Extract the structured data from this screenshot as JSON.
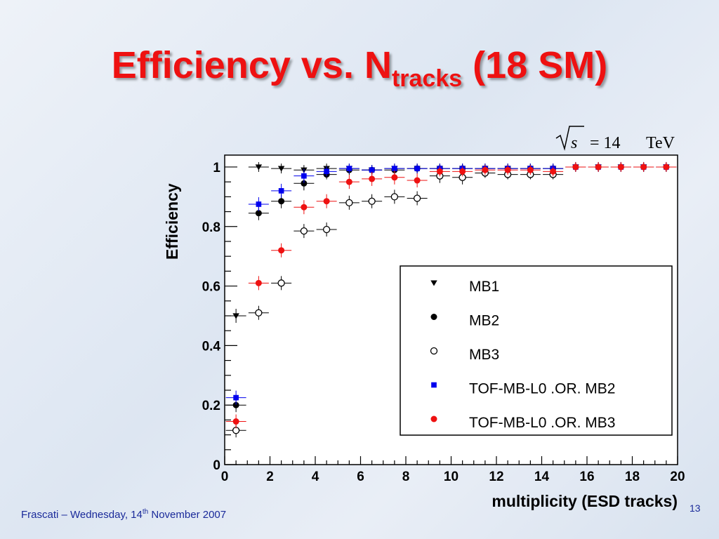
{
  "slide": {
    "title_main": "Efficiency vs. N",
    "title_sub": "tracks",
    "title_tail": " (18 SM)",
    "footer_pre": "Frascati – Wednesday, 14",
    "footer_sup": "th",
    "footer_post": " November 2007",
    "page_number": "13"
  },
  "chart_data": {
    "type": "scatter",
    "annotation": {
      "sqrt": "s",
      "rest": "= 14",
      "unit": "TeV"
    },
    "xlabel": "multiplicity (ESD tracks)",
    "ylabel": "Efficiency",
    "xlim": [
      0,
      20
    ],
    "ylim": [
      0,
      1.04
    ],
    "xticks": [
      0,
      2,
      4,
      6,
      8,
      10,
      12,
      14,
      16,
      18,
      20
    ],
    "yticks": [
      0,
      0.2,
      0.4,
      0.6,
      0.8,
      1
    ],
    "ytick_labels": [
      "0",
      "0.2",
      "0.4",
      "0.6",
      "0.8",
      "1"
    ],
    "legend_position": "lower-right",
    "series": [
      {
        "name": "MB1",
        "marker": "triangle-down",
        "color": "#000000",
        "x": [
          0.5,
          1.5,
          2.5,
          3.5,
          4.5,
          5.5,
          6.5,
          7.5,
          8.5,
          9.5,
          10.5,
          11.5,
          12.5,
          13.5,
          14.5,
          15.5,
          16.5,
          17.5,
          18.5,
          19.5
        ],
        "y": [
          0.5,
          1.0,
          0.995,
          0.99,
          0.995,
          0.995,
          0.99,
          0.995,
          0.995,
          0.995,
          0.995,
          0.995,
          0.995,
          0.995,
          0.995,
          1.0,
          1.0,
          1.0,
          1.0,
          1.0
        ]
      },
      {
        "name": "MB2",
        "marker": "circle-filled",
        "color": "#000000",
        "x": [
          0.5,
          1.5,
          2.5,
          3.5,
          4.5,
          5.5,
          6.5,
          7.5,
          8.5,
          9.5,
          10.5,
          11.5,
          12.5,
          13.5,
          14.5,
          15.5,
          16.5,
          17.5,
          18.5,
          19.5
        ],
        "y": [
          0.2,
          0.845,
          0.885,
          0.945,
          0.975,
          0.99,
          0.99,
          0.99,
          0.995,
          0.995,
          0.995,
          0.995,
          0.995,
          0.995,
          0.995,
          1.0,
          1.0,
          1.0,
          1.0,
          1.0
        ]
      },
      {
        "name": "MB3",
        "marker": "circle-open",
        "color": "#000000",
        "x": [
          0.5,
          1.5,
          2.5,
          3.5,
          4.5,
          5.5,
          6.5,
          7.5,
          8.5,
          9.5,
          10.5,
          11.5,
          12.5,
          13.5,
          14.5
        ],
        "y": [
          0.115,
          0.51,
          0.61,
          0.785,
          0.79,
          0.88,
          0.885,
          0.9,
          0.895,
          0.97,
          0.965,
          0.98,
          0.975,
          0.975,
          0.975
        ]
      },
      {
        "name": "TOF-MB-L0 .OR. MB2",
        "marker": "square-filled",
        "color": "#0000ee",
        "x": [
          0.5,
          1.5,
          2.5,
          3.5,
          4.5,
          5.5,
          6.5,
          7.5,
          8.5,
          9.5,
          10.5,
          11.5,
          12.5,
          13.5,
          14.5,
          15.5,
          16.5,
          17.5,
          18.5,
          19.5
        ],
        "y": [
          0.225,
          0.875,
          0.92,
          0.97,
          0.985,
          0.995,
          0.99,
          0.995,
          0.995,
          0.995,
          0.995,
          0.995,
          0.995,
          0.995,
          0.995,
          1.0,
          1.0,
          1.0,
          1.0,
          1.0
        ]
      },
      {
        "name": "TOF-MB-L0 .OR. MB3",
        "marker": "circle-filled",
        "color": "#ee1111",
        "x": [
          0.5,
          1.5,
          2.5,
          3.5,
          4.5,
          5.5,
          6.5,
          7.5,
          8.5,
          9.5,
          10.5,
          11.5,
          12.5,
          13.5,
          14.5,
          15.5,
          16.5,
          17.5,
          18.5,
          19.5
        ],
        "y": [
          0.145,
          0.61,
          0.72,
          0.865,
          0.885,
          0.95,
          0.96,
          0.965,
          0.955,
          0.985,
          0.985,
          0.99,
          0.99,
          0.99,
          0.985,
          1.0,
          1.0,
          1.0,
          1.0,
          1.0
        ]
      }
    ]
  }
}
